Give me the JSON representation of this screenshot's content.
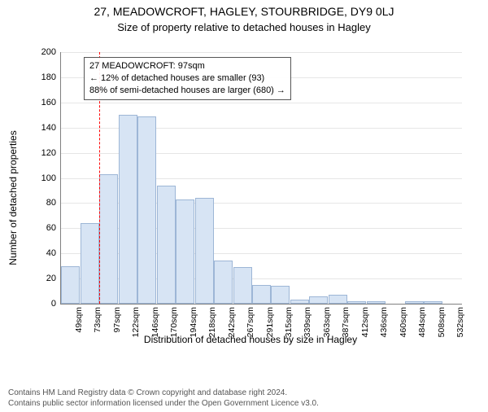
{
  "title": "27, MEADOWCROFT, HAGLEY, STOURBRIDGE, DY9 0LJ",
  "subtitle": "Size of property relative to detached houses in Hagley",
  "ylabel": "Number of detached properties",
  "xlabel": "Distribution of detached houses by size in Hagley",
  "attribution_line1": "Contains HM Land Registry data © Crown copyright and database right 2024.",
  "attribution_line2": "Contains public sector information licensed under the Open Government Licence v3.0.",
  "chart": {
    "type": "histogram",
    "ylim": [
      0,
      200
    ],
    "ytick_step": 20,
    "xticks": [
      "49sqm",
      "73sqm",
      "97sqm",
      "122sqm",
      "146sqm",
      "170sqm",
      "194sqm",
      "218sqm",
      "242sqm",
      "267sqm",
      "291sqm",
      "315sqm",
      "339sqm",
      "363sqm",
      "387sqm",
      "412sqm",
      "436sqm",
      "460sqm",
      "484sqm",
      "508sqm",
      "532sqm"
    ],
    "values": [
      30,
      64,
      103,
      150,
      149,
      94,
      83,
      84,
      34,
      29,
      15,
      14,
      3,
      6,
      7,
      2,
      2,
      0,
      2,
      2,
      0
    ],
    "bar_color": "#d7e4f4",
    "bar_border_color": "#9db6d6",
    "grid_color": "#e6e6e6",
    "axis_color": "#808080",
    "background_color": "#ffffff",
    "marker_index": 2,
    "marker_line_color": "#ff0000",
    "marker_line_dash": "3,3",
    "annotation": {
      "line1": "27 MEADOWCROFT: 97sqm",
      "line2": "← 12% of detached houses are smaller (93)",
      "line3": "88% of semi-detached houses are larger (680) →"
    },
    "title_fontsize": 14,
    "subtitle_fontsize": 13,
    "axis_label_fontsize": 12,
    "tick_fontsize": 11,
    "annot_fontsize": 11
  }
}
